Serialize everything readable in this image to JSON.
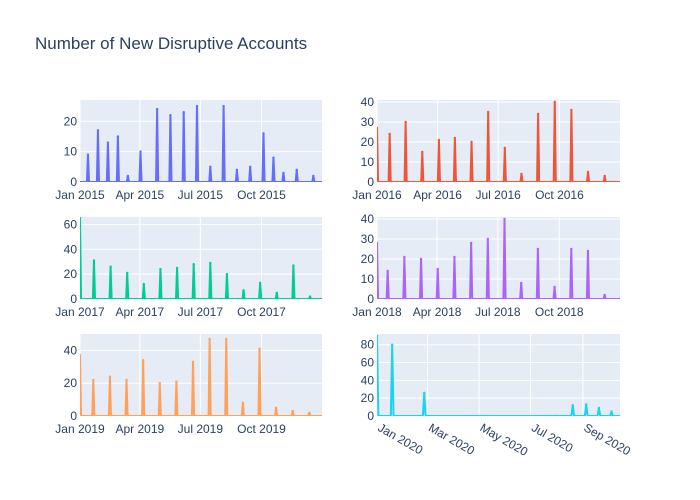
{
  "title": "Number of New Disruptive Accounts",
  "colors": {
    "plot_bg": "#E5ECF6",
    "grid": "#ffffff",
    "text": "#2a3f5f"
  },
  "chart_data": [
    {
      "type": "line",
      "year": 2015,
      "color": "#636EFA",
      "x": [
        "2015-01-13",
        "2015-01-28",
        "2015-02-12",
        "2015-02-27",
        "2015-03-14",
        "2015-04-02",
        "2015-04-27",
        "2015-05-17",
        "2015-06-06",
        "2015-06-26",
        "2015-07-16",
        "2015-08-05",
        "2015-08-25",
        "2015-09-14",
        "2015-10-04",
        "2015-10-19",
        "2015-11-03",
        "2015-11-23",
        "2015-12-18"
      ],
      "y": [
        9,
        17,
        13,
        15,
        2,
        10,
        24,
        22,
        23,
        25,
        5,
        25,
        4,
        5,
        16,
        8,
        3,
        4,
        2
      ],
      "xticks": [
        "Jan 2015",
        "Apr 2015",
        "Jul 2015",
        "Oct 2015"
      ],
      "xtick_dates": [
        "2015-01-01",
        "2015-04-01",
        "2015-07-01",
        "2015-10-01"
      ],
      "yticks": [
        0,
        10,
        20
      ],
      "ylim": [
        0,
        27
      ],
      "xlim": [
        "2015-01-01",
        "2015-12-31"
      ]
    },
    {
      "type": "line",
      "year": 2016,
      "color": "#EF553B",
      "x": [
        "2016-01-01",
        "2016-01-20",
        "2016-02-13",
        "2016-03-09",
        "2016-04-03",
        "2016-04-27",
        "2016-05-22",
        "2016-06-16",
        "2016-07-11",
        "2016-08-05",
        "2016-08-30",
        "2016-09-24",
        "2016-10-19",
        "2016-11-13",
        "2016-12-08"
      ],
      "y": [
        27,
        24,
        30,
        15,
        21,
        22,
        20,
        35,
        17,
        4,
        34,
        40,
        36,
        5,
        3
      ],
      "xticks": [
        "Jan 2016",
        "Apr 2016",
        "Jul 2016",
        "Oct 2016"
      ],
      "xtick_dates": [
        "2016-01-01",
        "2016-04-01",
        "2016-07-01",
        "2016-10-01"
      ],
      "yticks": [
        0,
        10,
        20,
        30,
        40
      ],
      "ylim": [
        0,
        41
      ],
      "xlim": [
        "2016-01-01",
        "2016-12-31"
      ]
    },
    {
      "type": "line",
      "year": 2017,
      "color": "#00CC96",
      "x": [
        "2017-01-01",
        "2017-01-22",
        "2017-02-16",
        "2017-03-13",
        "2017-04-07",
        "2017-05-02",
        "2017-05-27",
        "2017-06-21",
        "2017-07-16",
        "2017-08-10",
        "2017-09-04",
        "2017-09-29",
        "2017-10-24",
        "2017-11-18",
        "2017-12-13"
      ],
      "y": [
        65,
        31,
        26,
        21,
        12,
        24,
        25,
        28,
        29,
        20,
        7,
        13,
        5,
        27,
        2
      ],
      "xticks": [
        "Jan 2017",
        "Apr 2017",
        "Jul 2017",
        "Oct 2017"
      ],
      "xtick_dates": [
        "2017-01-01",
        "2017-04-01",
        "2017-07-01",
        "2017-10-01"
      ],
      "yticks": [
        0,
        20,
        40,
        60
      ],
      "ylim": [
        0,
        66
      ],
      "xlim": [
        "2017-01-01",
        "2017-12-31"
      ]
    },
    {
      "type": "line",
      "year": 2018,
      "color": "#AB63FA",
      "x": [
        "2018-01-01",
        "2018-01-17",
        "2018-02-11",
        "2018-03-08",
        "2018-04-02",
        "2018-04-27",
        "2018-05-22",
        "2018-06-16",
        "2018-07-11",
        "2018-08-05",
        "2018-08-30",
        "2018-09-24",
        "2018-10-19",
        "2018-11-13",
        "2018-12-08"
      ],
      "y": [
        28,
        14,
        21,
        20,
        15,
        21,
        28,
        30,
        40,
        8,
        25,
        6,
        25,
        24,
        2
      ],
      "xticks": [
        "Jan 2018",
        "Apr 2018",
        "Jul 2018",
        "Oct 2018"
      ],
      "xtick_dates": [
        "2018-01-01",
        "2018-04-01",
        "2018-07-01",
        "2018-10-01"
      ],
      "yticks": [
        0,
        10,
        20,
        30,
        40
      ],
      "ylim": [
        0,
        41
      ],
      "xlim": [
        "2018-01-01",
        "2018-12-31"
      ]
    },
    {
      "type": "line",
      "year": 2019,
      "color": "#FFA15A",
      "x": [
        "2019-01-01",
        "2019-01-21",
        "2019-02-15",
        "2019-03-12",
        "2019-04-06",
        "2019-05-01",
        "2019-05-26",
        "2019-06-20",
        "2019-07-15",
        "2019-08-09",
        "2019-09-03",
        "2019-09-28",
        "2019-10-23",
        "2019-11-17",
        "2019-12-12"
      ],
      "y": [
        37,
        22,
        24,
        22,
        34,
        20,
        21,
        33,
        47,
        47,
        8,
        41,
        5,
        3,
        2
      ],
      "xticks": [
        "Jan 2019",
        "Apr 2019",
        "Jul 2019",
        "Oct 2019"
      ],
      "xtick_dates": [
        "2019-01-01",
        "2019-04-01",
        "2019-07-01",
        "2019-10-01"
      ],
      "yticks": [
        0,
        20,
        40
      ],
      "ylim": [
        0,
        50
      ],
      "xlim": [
        "2019-01-01",
        "2019-12-31"
      ]
    },
    {
      "type": "line",
      "year": 2020,
      "color": "#19D3F3",
      "x": [
        "2020-01-01",
        "2020-01-19",
        "2020-02-26",
        "2020-05-15",
        "2020-08-01",
        "2020-08-20",
        "2020-09-05",
        "2020-09-20",
        "2020-10-05"
      ],
      "y": [
        90,
        80,
        26,
        0,
        0,
        12,
        13,
        9,
        5
      ],
      "xticks": [
        "Jan 2020",
        "Mar 2020",
        "May 2020",
        "Jul 2020",
        "Sep 2020"
      ],
      "xtick_dates": [
        "2020-01-01",
        "2020-03-01",
        "2020-05-01",
        "2020-07-01",
        "2020-09-01"
      ],
      "yticks": [
        0,
        20,
        40,
        60,
        80
      ],
      "ylim": [
        0,
        92
      ],
      "xlim": [
        "2020-01-01",
        "2020-10-15"
      ]
    }
  ]
}
